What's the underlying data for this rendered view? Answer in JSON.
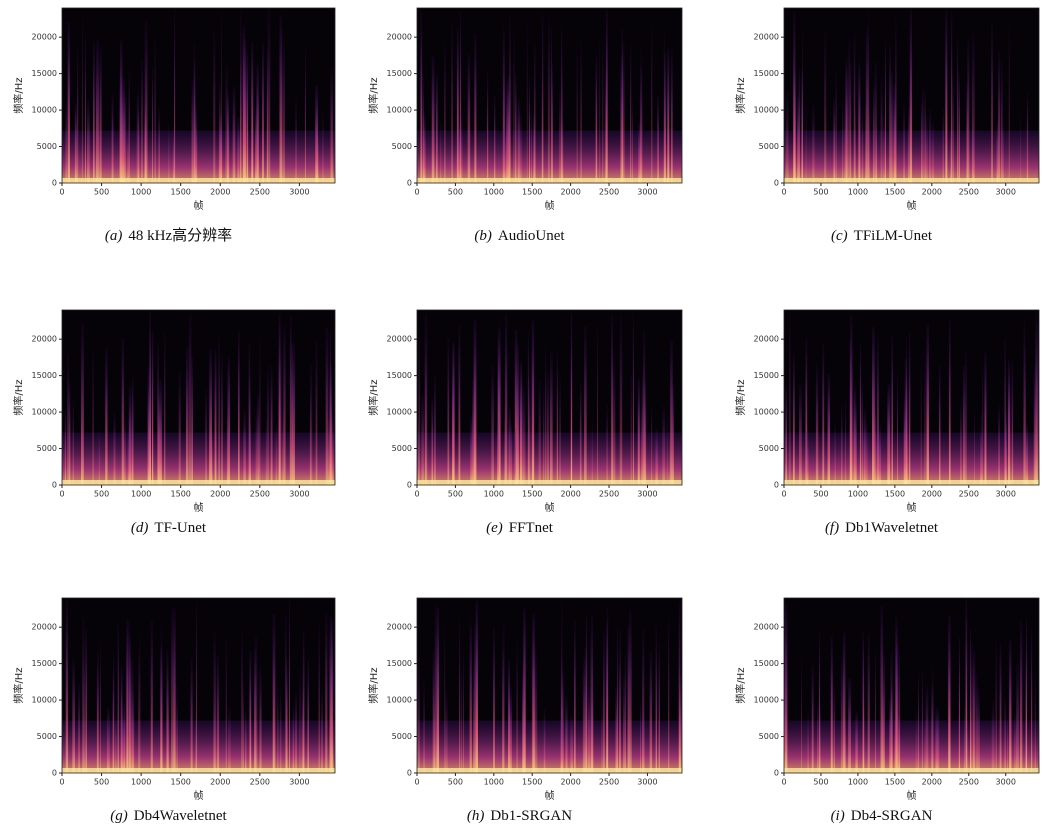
{
  "chart_data": [
    {
      "type": "spectrogram",
      "panel": "(a)",
      "title": "48 kHz高分辨率",
      "x_label": "帧",
      "y_label": "频率/Hz",
      "xlim": [
        0,
        3450
      ],
      "ylim": [
        0,
        24000
      ],
      "xticks": [
        0,
        500,
        1000,
        1500,
        2000,
        2500,
        3000
      ],
      "yticks": [
        0,
        5000,
        10000,
        15000,
        20000
      ]
    },
    {
      "type": "spectrogram",
      "panel": "(b)",
      "title": "AudioUnet",
      "x_label": "帧",
      "y_label": "频率/Hz",
      "xlim": [
        0,
        3450
      ],
      "ylim": [
        0,
        24000
      ],
      "xticks": [
        0,
        500,
        1000,
        1500,
        2000,
        2500,
        3000
      ],
      "yticks": [
        0,
        5000,
        10000,
        15000,
        20000
      ]
    },
    {
      "type": "spectrogram",
      "panel": "(c)",
      "title": "TFiLM-Unet",
      "x_label": "帧",
      "y_label": "频率/Hz",
      "xlim": [
        0,
        3450
      ],
      "ylim": [
        0,
        24000
      ],
      "xticks": [
        0,
        500,
        1000,
        1500,
        2000,
        2500,
        3000
      ],
      "yticks": [
        0,
        5000,
        10000,
        15000,
        20000
      ]
    },
    {
      "type": "spectrogram",
      "panel": "(d)",
      "title": "TF-Unet",
      "x_label": "帧",
      "y_label": "频率/Hz",
      "xlim": [
        0,
        3450
      ],
      "ylim": [
        0,
        24000
      ],
      "xticks": [
        0,
        500,
        1000,
        1500,
        2000,
        2500,
        3000
      ],
      "yticks": [
        0,
        5000,
        10000,
        15000,
        20000
      ]
    },
    {
      "type": "spectrogram",
      "panel": "(e)",
      "title": "FFTnet",
      "x_label": "帧",
      "y_label": "频率/Hz",
      "xlim": [
        0,
        3450
      ],
      "ylim": [
        0,
        24000
      ],
      "xticks": [
        0,
        500,
        1000,
        1500,
        2000,
        2500,
        3000
      ],
      "yticks": [
        0,
        5000,
        10000,
        15000,
        20000
      ]
    },
    {
      "type": "spectrogram",
      "panel": "(f)",
      "title": "Db1Waveletnet",
      "x_label": "帧",
      "y_label": "频率/Hz",
      "xlim": [
        0,
        3450
      ],
      "ylim": [
        0,
        24000
      ],
      "xticks": [
        0,
        500,
        1000,
        1500,
        2000,
        2500,
        3000
      ],
      "yticks": [
        0,
        5000,
        10000,
        15000,
        20000
      ]
    },
    {
      "type": "spectrogram",
      "panel": "(g)",
      "title": "Db4Waveletnet",
      "x_label": "帧",
      "y_label": "频率/Hz",
      "xlim": [
        0,
        3450
      ],
      "ylim": [
        0,
        24000
      ],
      "xticks": [
        0,
        500,
        1000,
        1500,
        2000,
        2500,
        3000
      ],
      "yticks": [
        0,
        5000,
        10000,
        15000,
        20000
      ]
    },
    {
      "type": "spectrogram",
      "panel": "(h)",
      "title": "Db1-SRGAN",
      "x_label": "帧",
      "y_label": "频率/Hz",
      "xlim": [
        0,
        3450
      ],
      "ylim": [
        0,
        24000
      ],
      "xticks": [
        0,
        500,
        1000,
        1500,
        2000,
        2500,
        3000
      ],
      "yticks": [
        0,
        5000,
        10000,
        15000,
        20000
      ]
    },
    {
      "type": "spectrogram",
      "panel": "(i)",
      "title": "Db4-SRGAN",
      "x_label": "帧",
      "y_label": "频率/Hz",
      "xlim": [
        0,
        3450
      ],
      "ylim": [
        0,
        24000
      ],
      "xticks": [
        0,
        500,
        1000,
        1500,
        2000,
        2500,
        3000
      ],
      "yticks": [
        0,
        5000,
        10000,
        15000,
        20000
      ]
    }
  ]
}
